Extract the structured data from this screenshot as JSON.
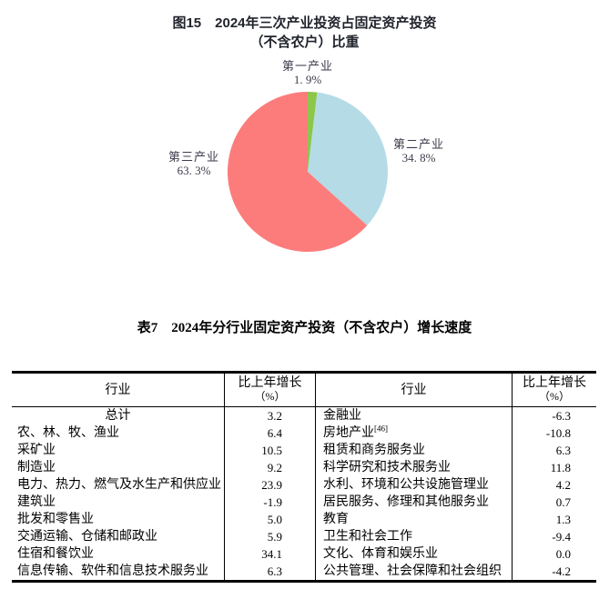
{
  "figure": {
    "title_line1": "图15　2024年三次产业投资占固定资产投资",
    "title_line2": "（不含农户）比重",
    "labels": {
      "primary_name": "第一产业",
      "primary_value": "1. 9%",
      "secondary_name": "第二产业",
      "secondary_value": "34. 8%",
      "tertiary_name": "第三产业",
      "tertiary_value": "63. 3%"
    }
  },
  "chart_data": {
    "type": "pie",
    "figure_number": "图15",
    "title": "2024年三次产业投资占固定资产投资（不含农户）比重",
    "labels": [
      "第一产业",
      "第二产业",
      "第三产业"
    ],
    "values": [
      1.9,
      34.8,
      63.3
    ],
    "unit": "%",
    "colors": [
      "#8DC64A",
      "#B4DBE6",
      "#FC7C7C"
    ],
    "start_angle_deg": -90,
    "direction": "clockwise",
    "legend_position": "outside-labels"
  },
  "table": {
    "title": "表7　2024年分行业固定资产投资（不含农户）增长速度",
    "header": {
      "industry": "行业",
      "growth": "比上年增长",
      "growth_unit": "（%）"
    },
    "rows": [
      {
        "l_name": "总计",
        "l_val": "3.2",
        "r_name": "金融业",
        "r_val": "-6.3"
      },
      {
        "l_name": "农、林、牧、渔业",
        "l_val": "6.4",
        "r_name": "房地产业",
        "r_sup": "[46]",
        "r_val": "-10.8"
      },
      {
        "l_name": "采矿业",
        "l_val": "10.5",
        "r_name": "租赁和商务服务业",
        "r_val": "6.3"
      },
      {
        "l_name": "制造业",
        "l_val": "9.2",
        "r_name": "科学研究和技术服务业",
        "r_val": "11.8"
      },
      {
        "l_name": "电力、热力、燃气及水生产和供应业",
        "l_val": "23.9",
        "r_name": "水利、环境和公共设施管理业",
        "r_val": "4.2"
      },
      {
        "l_name": "建筑业",
        "l_val": "-1.9",
        "r_name": "居民服务、修理和其他服务业",
        "r_val": "0.7"
      },
      {
        "l_name": "批发和零售业",
        "l_val": "5.0",
        "r_name": "教育",
        "r_val": "1.3"
      },
      {
        "l_name": "交通运输、仓储和邮政业",
        "l_val": "5.9",
        "r_name": "卫生和社会工作",
        "r_val": "-9.4"
      },
      {
        "l_name": "住宿和餐饮业",
        "l_val": "34.1",
        "r_name": "文化、体育和娱乐业",
        "r_val": "0.0"
      },
      {
        "l_name": "信息传输、软件和信息技术服务业",
        "l_val": "6.3",
        "r_name": "公共管理、社会保障和社会组织",
        "r_val": "-4.2"
      }
    ]
  }
}
